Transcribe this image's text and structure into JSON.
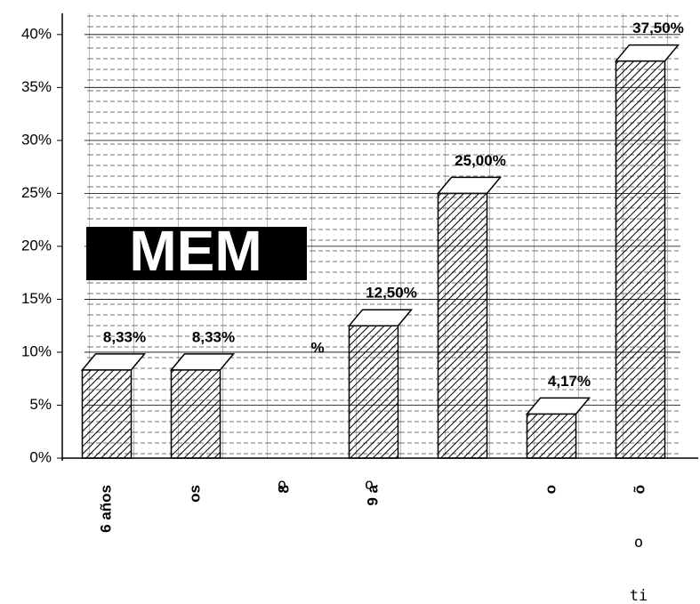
{
  "chart_data": {
    "type": "bar",
    "categories": [
      "6 años",
      "os",
      "8",
      "9 a",
      null,
      "o",
      "õ"
    ],
    "values": [
      8.33,
      8.33,
      null,
      12.5,
      25,
      4.17,
      37.5
    ],
    "value_labels": [
      "8,33%",
      "8,33%",
      null,
      "12,50%",
      "25,00%",
      "4,17%",
      "37,50%"
    ],
    "ylim": [
      0,
      42
    ],
    "yticks": [
      {
        "value": 0,
        "label": "0%"
      },
      {
        "value": 5,
        "label": "5%"
      },
      {
        "value": 10,
        "label": "10%"
      },
      {
        "value": 15,
        "label": "15%"
      },
      {
        "value": 20,
        "label": "20%"
      },
      {
        "value": 25,
        "label": "25%"
      },
      {
        "value": 30,
        "label": "30%"
      },
      {
        "value": 35,
        "label": "35%"
      },
      {
        "value": 40,
        "label": "40%"
      }
    ],
    "annotations": [
      "MEM",
      "%",
      "o",
      "o",
      "o",
      "ti"
    ],
    "grid": true
  }
}
